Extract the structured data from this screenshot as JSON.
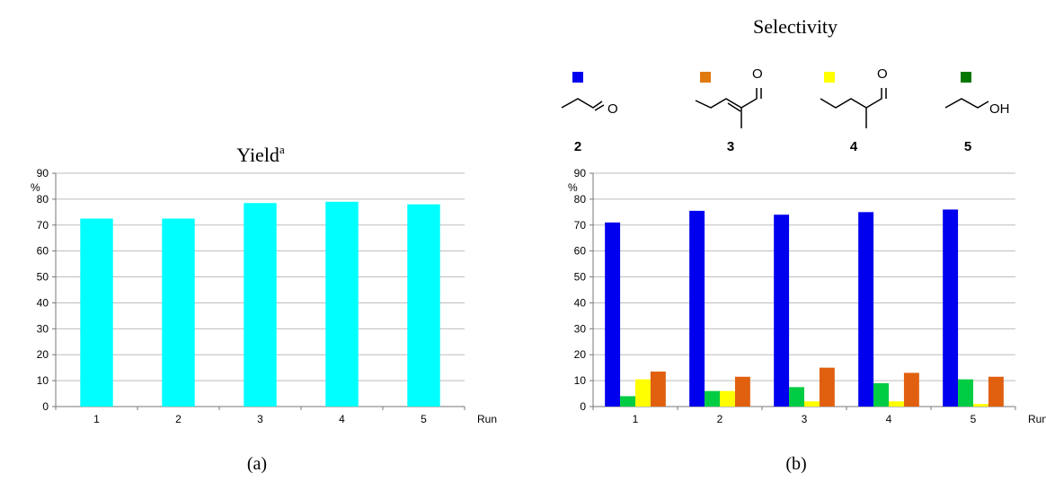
{
  "panel_a": {
    "label": "(a)",
    "title": "Yield",
    "title_sup": "a"
  },
  "panel_b": {
    "label": "(b)",
    "title": "Selectivity",
    "compounds": [
      {
        "number": "2",
        "color": "#0000ee",
        "label": "O",
        "series": "2"
      },
      {
        "number": "3",
        "color": "#e07a10",
        "label": "O",
        "series": "3"
      },
      {
        "number": "4",
        "color": "#ffff00",
        "label": "O",
        "series": "4"
      },
      {
        "number": "5",
        "color": "#007700",
        "label": "OH",
        "series": "5"
      }
    ]
  },
  "chart_data": [
    {
      "type": "bar",
      "title": "Yield",
      "title_superscript": "a",
      "ylabel": "%",
      "xlabel": "Run",
      "categories": [
        "1",
        "2",
        "3",
        "4",
        "5"
      ],
      "values": [
        72.5,
        72.5,
        78.5,
        79,
        78
      ],
      "ylim": [
        0,
        90
      ],
      "yticks": [
        0,
        10,
        20,
        30,
        40,
        50,
        60,
        70,
        80,
        90
      ],
      "grid": true,
      "color": "#00ffff"
    },
    {
      "type": "bar",
      "title": "Selectivity",
      "ylabel": "%",
      "xlabel": "Run",
      "categories": [
        "1",
        "2",
        "3",
        "4",
        "5"
      ],
      "ylim": [
        0,
        90
      ],
      "yticks": [
        0,
        10,
        20,
        30,
        40,
        50,
        60,
        70,
        80,
        90
      ],
      "grid": true,
      "series": [
        {
          "name": "2",
          "color": "#0000ee",
          "values": [
            71,
            75.5,
            74,
            75,
            76
          ]
        },
        {
          "name": "5",
          "color": "#00cc44",
          "values": [
            4,
            6,
            7.5,
            9,
            10.5
          ]
        },
        {
          "name": "4",
          "color": "#ffff00",
          "values": [
            10.5,
            6,
            2,
            2,
            1
          ]
        },
        {
          "name": "3",
          "color": "#e06010",
          "values": [
            13.5,
            11.5,
            15,
            13,
            11.5
          ]
        }
      ]
    }
  ]
}
